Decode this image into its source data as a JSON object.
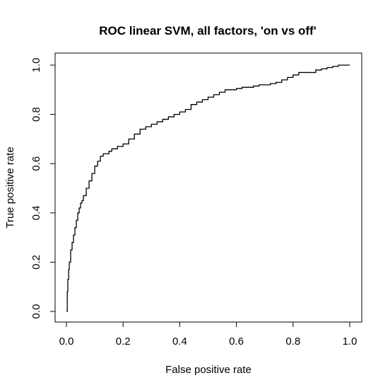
{
  "chart_data": {
    "type": "line",
    "title": "ROC linear SVM, all factors,  'on vs off'",
    "xlabel": "False positive rate",
    "ylabel": "True positive rate",
    "xlim": [
      0,
      1
    ],
    "ylim": [
      0,
      1
    ],
    "xticks": [
      "0.0",
      "0.2",
      "0.4",
      "0.6",
      "0.8",
      "1.0"
    ],
    "yticks": [
      "0.0",
      "0.2",
      "0.4",
      "0.6",
      "0.8",
      "1.0"
    ],
    "grid": false,
    "line_color": "#000000",
    "series": [
      {
        "x": [
          0.0,
          0.003,
          0.005,
          0.008,
          0.01,
          0.015,
          0.02,
          0.025,
          0.03,
          0.035,
          0.04,
          0.045,
          0.05,
          0.055,
          0.06,
          0.07,
          0.08,
          0.09,
          0.1,
          0.11,
          0.12,
          0.13,
          0.14,
          0.15,
          0.16,
          0.18,
          0.2,
          0.22,
          0.24,
          0.26,
          0.28,
          0.3,
          0.32,
          0.34,
          0.36,
          0.38,
          0.4,
          0.42,
          0.44,
          0.46,
          0.48,
          0.5,
          0.52,
          0.54,
          0.56,
          0.58,
          0.6,
          0.62,
          0.64,
          0.66,
          0.68,
          0.7,
          0.72,
          0.74,
          0.76,
          0.78,
          0.8,
          0.82,
          0.84,
          0.86,
          0.88,
          0.9,
          0.92,
          0.94,
          0.96,
          0.98,
          1.0
        ],
        "y": [
          0.0,
          0.08,
          0.13,
          0.17,
          0.2,
          0.25,
          0.28,
          0.31,
          0.34,
          0.37,
          0.4,
          0.42,
          0.44,
          0.45,
          0.47,
          0.5,
          0.53,
          0.56,
          0.59,
          0.61,
          0.63,
          0.64,
          0.64,
          0.65,
          0.66,
          0.67,
          0.68,
          0.7,
          0.72,
          0.74,
          0.75,
          0.76,
          0.77,
          0.78,
          0.79,
          0.8,
          0.81,
          0.82,
          0.84,
          0.85,
          0.86,
          0.87,
          0.88,
          0.89,
          0.9,
          0.9,
          0.905,
          0.91,
          0.91,
          0.915,
          0.92,
          0.92,
          0.925,
          0.93,
          0.94,
          0.95,
          0.96,
          0.97,
          0.97,
          0.97,
          0.98,
          0.985,
          0.99,
          0.995,
          1.0,
          1.0,
          1.0
        ]
      }
    ]
  }
}
